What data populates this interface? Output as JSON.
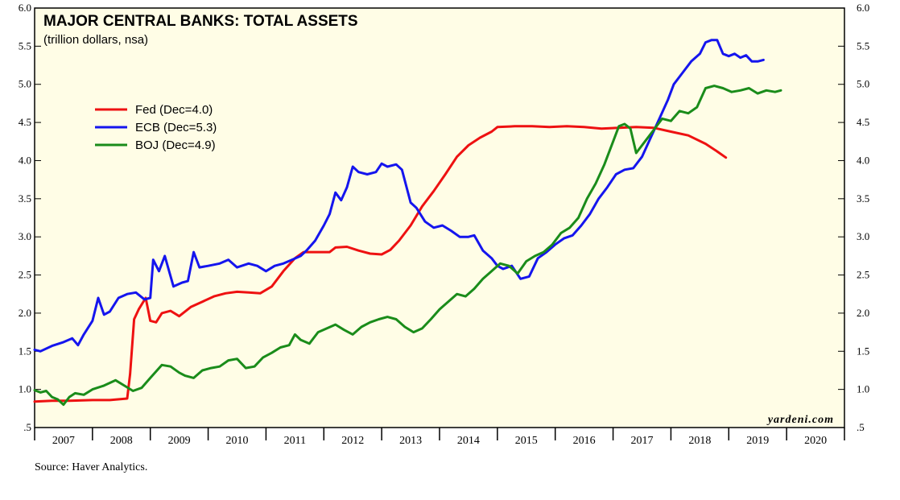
{
  "chart_data": {
    "type": "line",
    "title": "MAJOR CENTRAL BANKS: TOTAL ASSETS",
    "subtitle": "(trillion dollars, nsa)",
    "watermark": "yardeni.com",
    "source": "Source: Haver Analytics.",
    "background": "#fffde6",
    "ylim": [
      0.5,
      6.0
    ],
    "xlim": [
      2007.0,
      2021.0
    ],
    "yticks": [
      0.5,
      1.0,
      1.5,
      2.0,
      2.5,
      3.0,
      3.5,
      4.0,
      4.5,
      5.0,
      5.5,
      6.0
    ],
    "ytick_labels": [
      ".5",
      "1.0",
      "1.5",
      "2.0",
      "2.5",
      "3.0",
      "3.5",
      "4.0",
      "4.5",
      "5.0",
      "5.5",
      "6.0"
    ],
    "year_labels": [
      "2007",
      "2008",
      "2009",
      "2010",
      "2011",
      "2012",
      "2013",
      "2014",
      "2015",
      "2016",
      "2017",
      "2018",
      "2019",
      "2020"
    ],
    "legend_position": "upper-left",
    "series": [
      {
        "name": "Fed (Dec=4.0)",
        "color": "#ee1111",
        "points": [
          [
            2007.0,
            0.84
          ],
          [
            2007.3,
            0.85
          ],
          [
            2007.6,
            0.85
          ],
          [
            2008.0,
            0.86
          ],
          [
            2008.3,
            0.86
          ],
          [
            2008.6,
            0.88
          ],
          [
            2008.65,
            1.2
          ],
          [
            2008.72,
            1.92
          ],
          [
            2008.8,
            2.05
          ],
          [
            2008.92,
            2.2
          ],
          [
            2009.0,
            1.9
          ],
          [
            2009.1,
            1.88
          ],
          [
            2009.2,
            2.0
          ],
          [
            2009.35,
            2.03
          ],
          [
            2009.5,
            1.96
          ],
          [
            2009.7,
            2.08
          ],
          [
            2009.9,
            2.15
          ],
          [
            2010.1,
            2.22
          ],
          [
            2010.3,
            2.26
          ],
          [
            2010.5,
            2.28
          ],
          [
            2010.7,
            2.27
          ],
          [
            2010.9,
            2.26
          ],
          [
            2011.1,
            2.35
          ],
          [
            2011.3,
            2.55
          ],
          [
            2011.5,
            2.72
          ],
          [
            2011.65,
            2.8
          ],
          [
            2011.9,
            2.8
          ],
          [
            2012.1,
            2.8
          ],
          [
            2012.2,
            2.86
          ],
          [
            2012.4,
            2.87
          ],
          [
            2012.6,
            2.82
          ],
          [
            2012.8,
            2.78
          ],
          [
            2013.0,
            2.77
          ],
          [
            2013.15,
            2.83
          ],
          [
            2013.3,
            2.95
          ],
          [
            2013.5,
            3.15
          ],
          [
            2013.7,
            3.4
          ],
          [
            2013.9,
            3.6
          ],
          [
            2014.1,
            3.82
          ],
          [
            2014.3,
            4.05
          ],
          [
            2014.5,
            4.2
          ],
          [
            2014.7,
            4.3
          ],
          [
            2014.9,
            4.38
          ],
          [
            2015.0,
            4.44
          ],
          [
            2015.3,
            4.45
          ],
          [
            2015.6,
            4.45
          ],
          [
            2015.9,
            4.44
          ],
          [
            2016.2,
            4.45
          ],
          [
            2016.5,
            4.44
          ],
          [
            2016.8,
            4.42
          ],
          [
            2017.1,
            4.43
          ],
          [
            2017.4,
            4.44
          ],
          [
            2017.7,
            4.43
          ],
          [
            2018.0,
            4.38
          ],
          [
            2018.3,
            4.33
          ],
          [
            2018.6,
            4.22
          ],
          [
            2018.8,
            4.12
          ],
          [
            2018.95,
            4.04
          ]
        ]
      },
      {
        "name": "ECB (Dec=5.3)",
        "color": "#1515ee",
        "points": [
          [
            2007.0,
            1.52
          ],
          [
            2007.1,
            1.5
          ],
          [
            2007.3,
            1.57
          ],
          [
            2007.5,
            1.62
          ],
          [
            2007.65,
            1.67
          ],
          [
            2007.75,
            1.58
          ],
          [
            2007.85,
            1.72
          ],
          [
            2008.0,
            1.9
          ],
          [
            2008.1,
            2.2
          ],
          [
            2008.2,
            1.98
          ],
          [
            2008.3,
            2.02
          ],
          [
            2008.45,
            2.2
          ],
          [
            2008.6,
            2.25
          ],
          [
            2008.75,
            2.27
          ],
          [
            2008.9,
            2.18
          ],
          [
            2009.0,
            2.2
          ],
          [
            2009.05,
            2.7
          ],
          [
            2009.15,
            2.55
          ],
          [
            2009.25,
            2.75
          ],
          [
            2009.4,
            2.35
          ],
          [
            2009.55,
            2.4
          ],
          [
            2009.65,
            2.42
          ],
          [
            2009.75,
            2.8
          ],
          [
            2009.85,
            2.6
          ],
          [
            2010.0,
            2.62
          ],
          [
            2010.2,
            2.65
          ],
          [
            2010.35,
            2.7
          ],
          [
            2010.5,
            2.6
          ],
          [
            2010.7,
            2.65
          ],
          [
            2010.85,
            2.62
          ],
          [
            2011.0,
            2.55
          ],
          [
            2011.15,
            2.62
          ],
          [
            2011.3,
            2.65
          ],
          [
            2011.45,
            2.7
          ],
          [
            2011.6,
            2.75
          ],
          [
            2011.7,
            2.82
          ],
          [
            2011.85,
            2.95
          ],
          [
            2012.0,
            3.15
          ],
          [
            2012.1,
            3.3
          ],
          [
            2012.2,
            3.58
          ],
          [
            2012.3,
            3.48
          ],
          [
            2012.4,
            3.65
          ],
          [
            2012.5,
            3.92
          ],
          [
            2012.6,
            3.85
          ],
          [
            2012.75,
            3.82
          ],
          [
            2012.9,
            3.85
          ],
          [
            2013.0,
            3.96
          ],
          [
            2013.1,
            3.92
          ],
          [
            2013.25,
            3.95
          ],
          [
            2013.35,
            3.88
          ],
          [
            2013.5,
            3.45
          ],
          [
            2013.6,
            3.38
          ],
          [
            2013.75,
            3.2
          ],
          [
            2013.9,
            3.12
          ],
          [
            2014.05,
            3.15
          ],
          [
            2014.2,
            3.08
          ],
          [
            2014.35,
            3.0
          ],
          [
            2014.5,
            3.0
          ],
          [
            2014.6,
            3.02
          ],
          [
            2014.75,
            2.82
          ],
          [
            2014.9,
            2.72
          ],
          [
            2015.0,
            2.62
          ],
          [
            2015.1,
            2.58
          ],
          [
            2015.25,
            2.62
          ],
          [
            2015.4,
            2.45
          ],
          [
            2015.55,
            2.48
          ],
          [
            2015.7,
            2.72
          ],
          [
            2015.85,
            2.8
          ],
          [
            2016.0,
            2.9
          ],
          [
            2016.15,
            2.98
          ],
          [
            2016.3,
            3.02
          ],
          [
            2016.45,
            3.15
          ],
          [
            2016.6,
            3.3
          ],
          [
            2016.75,
            3.5
          ],
          [
            2016.9,
            3.65
          ],
          [
            2017.05,
            3.82
          ],
          [
            2017.2,
            3.88
          ],
          [
            2017.35,
            3.9
          ],
          [
            2017.5,
            4.05
          ],
          [
            2017.65,
            4.3
          ],
          [
            2017.8,
            4.55
          ],
          [
            2017.95,
            4.8
          ],
          [
            2018.05,
            5.0
          ],
          [
            2018.2,
            5.15
          ],
          [
            2018.35,
            5.3
          ],
          [
            2018.5,
            5.4
          ],
          [
            2018.6,
            5.55
          ],
          [
            2018.7,
            5.58
          ],
          [
            2018.8,
            5.58
          ],
          [
            2018.9,
            5.4
          ],
          [
            2019.0,
            5.37
          ],
          [
            2019.1,
            5.4
          ],
          [
            2019.2,
            5.35
          ],
          [
            2019.3,
            5.38
          ],
          [
            2019.4,
            5.3
          ],
          [
            2019.5,
            5.3
          ],
          [
            2019.6,
            5.32
          ]
        ]
      },
      {
        "name": "BOJ (Dec=4.9)",
        "color": "#1a8c1a",
        "points": [
          [
            2007.0,
            0.99
          ],
          [
            2007.1,
            0.96
          ],
          [
            2007.2,
            0.98
          ],
          [
            2007.3,
            0.9
          ],
          [
            2007.4,
            0.87
          ],
          [
            2007.5,
            0.8
          ],
          [
            2007.6,
            0.9
          ],
          [
            2007.7,
            0.95
          ],
          [
            2007.85,
            0.93
          ],
          [
            2008.0,
            1.0
          ],
          [
            2008.2,
            1.05
          ],
          [
            2008.4,
            1.12
          ],
          [
            2008.55,
            1.05
          ],
          [
            2008.7,
            0.98
          ],
          [
            2008.85,
            1.02
          ],
          [
            2009.0,
            1.15
          ],
          [
            2009.2,
            1.32
          ],
          [
            2009.35,
            1.3
          ],
          [
            2009.5,
            1.22
          ],
          [
            2009.6,
            1.18
          ],
          [
            2009.75,
            1.15
          ],
          [
            2009.9,
            1.25
          ],
          [
            2010.05,
            1.28
          ],
          [
            2010.2,
            1.3
          ],
          [
            2010.35,
            1.38
          ],
          [
            2010.5,
            1.4
          ],
          [
            2010.65,
            1.28
          ],
          [
            2010.8,
            1.3
          ],
          [
            2010.95,
            1.42
          ],
          [
            2011.1,
            1.48
          ],
          [
            2011.25,
            1.55
          ],
          [
            2011.4,
            1.58
          ],
          [
            2011.5,
            1.72
          ],
          [
            2011.6,
            1.65
          ],
          [
            2011.75,
            1.6
          ],
          [
            2011.9,
            1.75
          ],
          [
            2012.05,
            1.8
          ],
          [
            2012.2,
            1.85
          ],
          [
            2012.35,
            1.78
          ],
          [
            2012.5,
            1.72
          ],
          [
            2012.65,
            1.82
          ],
          [
            2012.8,
            1.88
          ],
          [
            2012.95,
            1.92
          ],
          [
            2013.1,
            1.95
          ],
          [
            2013.25,
            1.92
          ],
          [
            2013.4,
            1.82
          ],
          [
            2013.55,
            1.75
          ],
          [
            2013.7,
            1.8
          ],
          [
            2013.85,
            1.92
          ],
          [
            2014.0,
            2.05
          ],
          [
            2014.15,
            2.15
          ],
          [
            2014.3,
            2.25
          ],
          [
            2014.45,
            2.22
          ],
          [
            2014.6,
            2.32
          ],
          [
            2014.75,
            2.45
          ],
          [
            2014.9,
            2.55
          ],
          [
            2015.05,
            2.65
          ],
          [
            2015.2,
            2.62
          ],
          [
            2015.35,
            2.52
          ],
          [
            2015.5,
            2.68
          ],
          [
            2015.65,
            2.75
          ],
          [
            2015.8,
            2.8
          ],
          [
            2015.95,
            2.9
          ],
          [
            2016.1,
            3.05
          ],
          [
            2016.25,
            3.12
          ],
          [
            2016.4,
            3.25
          ],
          [
            2016.55,
            3.5
          ],
          [
            2016.7,
            3.7
          ],
          [
            2016.85,
            3.95
          ],
          [
            2017.0,
            4.25
          ],
          [
            2017.1,
            4.45
          ],
          [
            2017.2,
            4.48
          ],
          [
            2017.3,
            4.42
          ],
          [
            2017.4,
            4.1
          ],
          [
            2017.55,
            4.25
          ],
          [
            2017.7,
            4.4
          ],
          [
            2017.85,
            4.55
          ],
          [
            2018.0,
            4.52
          ],
          [
            2018.15,
            4.65
          ],
          [
            2018.3,
            4.62
          ],
          [
            2018.45,
            4.7
          ],
          [
            2018.6,
            4.95
          ],
          [
            2018.75,
            4.98
          ],
          [
            2018.9,
            4.95
          ],
          [
            2019.05,
            4.9
          ],
          [
            2019.2,
            4.92
          ],
          [
            2019.35,
            4.95
          ],
          [
            2019.5,
            4.88
          ],
          [
            2019.65,
            4.92
          ],
          [
            2019.8,
            4.9
          ],
          [
            2019.9,
            4.92
          ]
        ]
      }
    ]
  }
}
